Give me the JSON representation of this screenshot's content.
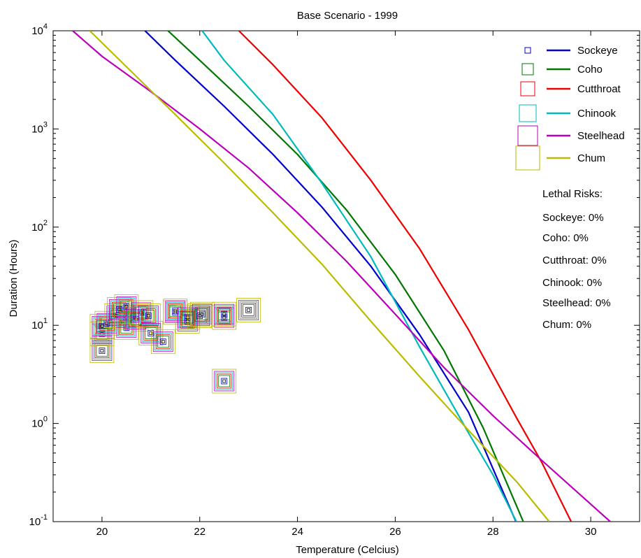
{
  "chart_data": {
    "type": "line",
    "title": "Base Scenario - 1999",
    "xlabel": "Temperature (Celcius)",
    "ylabel": "Duration (Hours)",
    "xlim": [
      19.0,
      31.0
    ],
    "ylim": [
      0.1,
      10000
    ],
    "yscale": "log",
    "grid": false,
    "legend_position": "top-right",
    "x_ticks": [
      20,
      22,
      24,
      26,
      28,
      30
    ],
    "y_ticks": [
      {
        "value": 0.1,
        "base": "10",
        "exp": "-1"
      },
      {
        "value": 1,
        "base": "10",
        "exp": "0"
      },
      {
        "value": 10,
        "base": "10",
        "exp": "1"
      },
      {
        "value": 100,
        "base": "10",
        "exp": "2"
      },
      {
        "value": 1000,
        "base": "10",
        "exp": "3"
      },
      {
        "value": 10000,
        "base": "10",
        "exp": "4"
      }
    ],
    "series": [
      {
        "name": "Sockeye",
        "color": "#0000cc",
        "x": [
          20.88,
          21.5,
          22.5,
          23.5,
          24.5,
          25.5,
          26.5,
          27.5,
          28.47
        ],
        "y": [
          10000,
          5000,
          1700,
          550,
          160,
          40,
          8,
          1.3,
          0.1
        ]
      },
      {
        "name": "Coho",
        "color": "#007700",
        "x": [
          21.35,
          22.0,
          23.0,
          24.0,
          25.0,
          26.0,
          27.0,
          27.8,
          28.62
        ],
        "y": [
          10000,
          5000,
          1700,
          550,
          150,
          33,
          5.5,
          0.9,
          0.1
        ]
      },
      {
        "name": "Cutthroat",
        "color": "#ee0000",
        "x": [
          22.8,
          23.5,
          24.5,
          25.5,
          26.5,
          27.5,
          28.5,
          29.0,
          29.6
        ],
        "y": [
          10000,
          4500,
          1300,
          300,
          60,
          9,
          1.1,
          0.4,
          0.1
        ]
      },
      {
        "name": "Chinook",
        "color": "#00bbbb",
        "x": [
          22.05,
          22.5,
          23.5,
          24.5,
          25.5,
          26.5,
          27.5,
          28.0,
          28.48
        ],
        "y": [
          10000,
          5000,
          1400,
          280,
          50,
          6,
          0.8,
          0.3,
          0.1
        ]
      },
      {
        "name": "Steelhead",
        "color": "#bb00bb",
        "x": [
          19.4,
          20.0,
          21.0,
          22.0,
          23.0,
          24.0,
          25.0,
          26.0,
          27.0,
          28.0,
          29.0,
          30.4
        ],
        "y": [
          10000,
          5500,
          2400,
          1000,
          400,
          140,
          45,
          13,
          3.7,
          1.2,
          0.42,
          0.1
        ]
      },
      {
        "name": "Chum",
        "color": "#bbbb00",
        "x": [
          19.75,
          20.5,
          21.5,
          22.5,
          23.5,
          24.5,
          25.5,
          26.5,
          27.5,
          28.5,
          29.15
        ],
        "y": [
          10000,
          4300,
          1400,
          450,
          140,
          42,
          11,
          3,
          0.85,
          0.25,
          0.1
        ]
      }
    ],
    "observations": {
      "x": [
        20.0,
        20.0,
        20.0,
        20.1,
        20.3,
        20.35,
        20.5,
        20.5,
        20.5,
        20.7,
        20.8,
        20.95,
        21.0,
        21.25,
        21.5,
        21.5,
        21.75,
        21.75,
        22.0,
        22.05,
        22.5,
        22.5,
        22.5,
        23.0
      ],
      "y": [
        5.5,
        8.2,
        9.8,
        10.5,
        12.5,
        14.5,
        9.5,
        12.0,
        15.5,
        11.5,
        13.5,
        12.5,
        8.3,
        6.8,
        13.5,
        14.0,
        11.0,
        12.0,
        12.5,
        13.0,
        2.7,
        12.0,
        13.0,
        14.3
      ]
    },
    "legend_markers": [
      "Sockeye",
      "Coho",
      "Cutthroat",
      "Chinook",
      "Steelhead",
      "Chum"
    ]
  },
  "risks": {
    "heading": "Lethal Risks:",
    "items": [
      "Sockeye: 0%",
      "Coho: 0%",
      "Cutthroat: 0%",
      "Chinook: 0%",
      "Steelhead: 0%",
      "Chum: 0%"
    ]
  }
}
